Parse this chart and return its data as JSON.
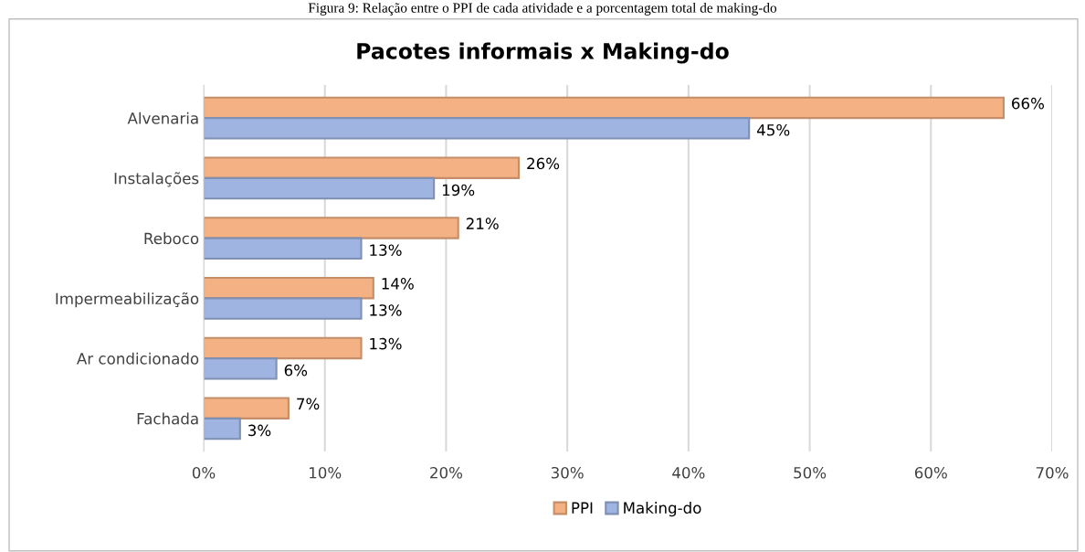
{
  "chart_data": {
    "type": "bar",
    "orientation": "horizontal",
    "title": "Pacotes informais x Making-do",
    "annotations": [
      "Figura 9: Relação entre o PPI de cada atividade e a porcentagem total de making-do"
    ],
    "categories": [
      "Alvenaria",
      "Instalações",
      "Reboco",
      "Impermeabilização",
      "Ar condicionado",
      "Fachada"
    ],
    "series": [
      {
        "name": "PPI",
        "color": "#f4b183",
        "values": [
          66,
          26,
          21,
          14,
          13,
          7
        ],
        "value_labels": [
          "66%",
          "26%",
          "21%",
          "14%",
          "13%",
          "7%"
        ]
      },
      {
        "name": "Making-do",
        "color": "#9fb4e0",
        "values": [
          45,
          19,
          13,
          13,
          6,
          3
        ],
        "value_labels": [
          "45%",
          "19%",
          "13%",
          "13%",
          "6%",
          "3%"
        ]
      }
    ],
    "xlim": [
      0,
      70
    ],
    "xticks": [
      {
        "value": 0,
        "label": "0%"
      },
      {
        "value": 10,
        "label": "10%"
      },
      {
        "value": 20,
        "label": "20%"
      },
      {
        "value": 30,
        "label": "30%"
      },
      {
        "value": 40,
        "label": "40%"
      },
      {
        "value": 50,
        "label": "50%"
      },
      {
        "value": 60,
        "label": "60%"
      },
      {
        "value": 70,
        "label": "70%"
      }
    ],
    "grid": "x",
    "legend": "bottom"
  }
}
